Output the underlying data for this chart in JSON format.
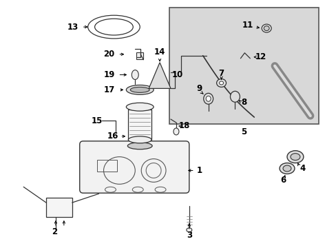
{
  "bg_color": "#ffffff",
  "box_bg": "#d8d8d8",
  "box_border": "#666666",
  "line_color": "#333333",
  "label_color": "#000000",
  "parts_line_color": "#444444"
}
